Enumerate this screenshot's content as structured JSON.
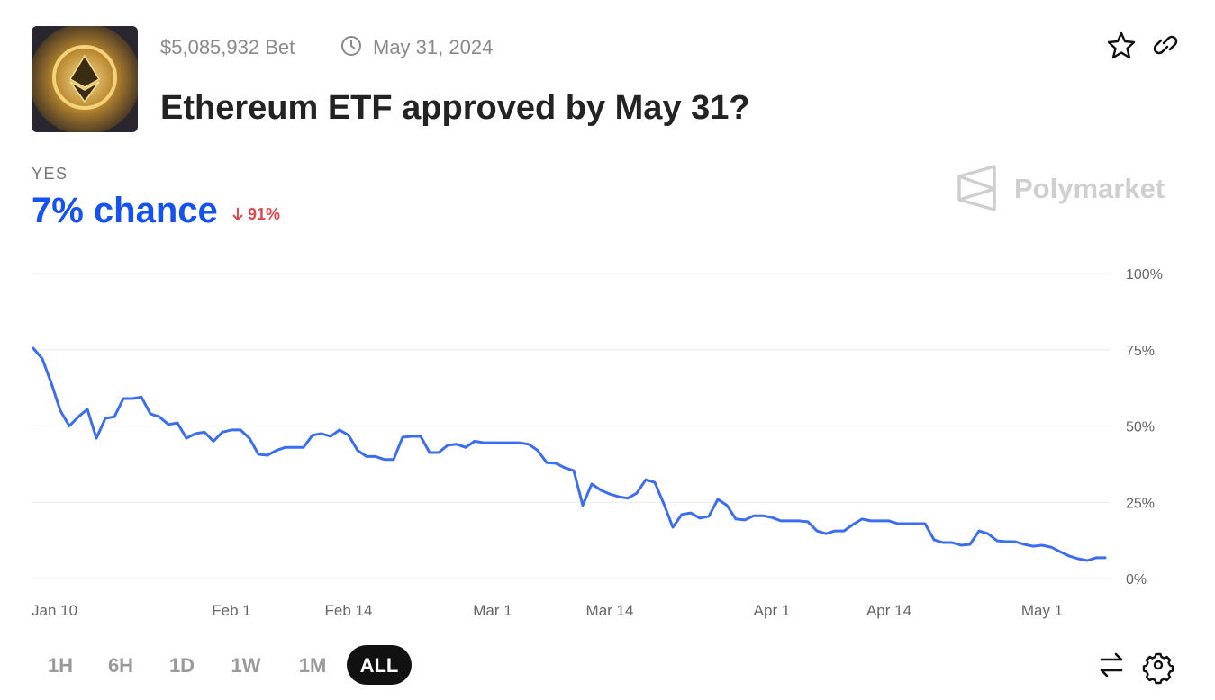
{
  "header": {
    "volume": "$5,085,932 Bet",
    "end_date": "May 31, 2024",
    "title": "Ethereum ETF approved by May 31?",
    "outcome": "YES",
    "chance": "7% chance",
    "change": "91%",
    "brand": "Polymarket"
  },
  "controls": {
    "ranges": [
      "1H",
      "6H",
      "1D",
      "1W",
      "1M",
      "ALL"
    ]
  },
  "chart_data": {
    "type": "line",
    "color": "#3a6df0",
    "grid": true,
    "x": [
      "Jan 10",
      "Jan 11",
      "Jan 12",
      "Jan 13",
      "Jan 14",
      "Jan 15",
      "Jan 16",
      "Jan 17",
      "Jan 18",
      "Jan 19",
      "Jan 20",
      "Jan 21",
      "Jan 22",
      "Jan 23",
      "Jan 24",
      "Jan 25",
      "Jan 26",
      "Jan 27",
      "Jan 28",
      "Jan 29",
      "Jan 30",
      "Jan 31",
      "Feb 1",
      "Feb 2",
      "Feb 3",
      "Feb 4",
      "Feb 5",
      "Feb 6",
      "Feb 7",
      "Feb 8",
      "Feb 9",
      "Feb 10",
      "Feb 11",
      "Feb 12",
      "Feb 13",
      "Feb 14",
      "Feb 15",
      "Feb 16",
      "Feb 17",
      "Feb 18",
      "Feb 19",
      "Feb 20",
      "Feb 21",
      "Feb 22",
      "Feb 23",
      "Feb 24",
      "Feb 25",
      "Feb 26",
      "Feb 27",
      "Feb 28",
      "Feb 29",
      "Mar 1",
      "Mar 2",
      "Mar 3",
      "Mar 4",
      "Mar 5",
      "Mar 6",
      "Mar 7",
      "Mar 8",
      "Mar 9",
      "Mar 10",
      "Mar 11",
      "Mar 12",
      "Mar 13",
      "Mar 14",
      "Mar 15",
      "Mar 16",
      "Mar 17",
      "Mar 18",
      "Mar 19",
      "Mar 20",
      "Mar 21",
      "Mar 22",
      "Mar 23",
      "Mar 24",
      "Mar 25",
      "Mar 26",
      "Mar 27",
      "Mar 28",
      "Mar 29",
      "Mar 30",
      "Mar 31",
      "Apr 1",
      "Apr 2",
      "Apr 3",
      "Apr 4",
      "Apr 5",
      "Apr 6",
      "Apr 7",
      "Apr 8",
      "Apr 9",
      "Apr 10",
      "Apr 11",
      "Apr 12",
      "Apr 13",
      "Apr 14",
      "Apr 15",
      "Apr 16",
      "Apr 17",
      "Apr 18",
      "Apr 19",
      "Apr 20",
      "Apr 21",
      "Apr 22",
      "Apr 23",
      "Apr 24",
      "Apr 25",
      "Apr 26",
      "Apr 27",
      "Apr 28",
      "Apr 29",
      "Apr 30",
      "May 1",
      "May 2",
      "May 3",
      "May 4",
      "May 5",
      "May 6",
      "May 7",
      "May 8"
    ],
    "values": [
      75.5,
      72,
      64,
      55,
      50,
      53,
      55.5,
      46,
      52.5,
      53,
      59,
      59,
      59.5,
      54,
      53,
      50.5,
      51,
      46,
      47.5,
      48,
      45,
      48,
      48.7,
      48.7,
      46,
      40.7,
      40.4,
      42,
      43,
      43,
      43,
      47,
      47.5,
      46.6,
      48.7,
      47,
      42,
      40,
      40,
      39,
      39,
      46.3,
      46.6,
      46.6,
      41.3,
      41.3,
      43.7,
      44,
      43,
      45,
      44.5,
      44.5,
      44.5,
      44.5,
      44.5,
      44,
      42,
      38,
      37.8,
      36.3,
      35.4,
      24,
      31,
      29,
      27.7,
      26.8,
      26.3,
      28,
      32.4,
      31.5,
      24.5,
      16.8,
      21,
      21.5,
      19.8,
      20.4,
      26,
      24,
      19.5,
      19.2,
      20.6,
      20.6,
      20,
      18.9,
      18.9,
      18.9,
      18.6,
      15.6,
      14.7,
      15.6,
      15.6,
      17.7,
      19.5,
      18.9,
      18.9,
      18.9,
      18,
      18,
      18,
      18,
      12.7,
      11.8,
      11.8,
      10.9,
      11.2,
      15.6,
      14.7,
      12.4,
      12.1,
      12.1,
      11.2,
      10.6,
      10.9,
      10.3,
      8.8,
      7.4,
      6.5,
      5.9,
      6.8,
      6.8
    ],
    "xlim": [
      "Jan 10",
      "May 9"
    ],
    "xticks": [
      "Jan 10",
      "Feb 1",
      "Feb 14",
      "Mar 1",
      "Mar 14",
      "Apr 1",
      "Apr 14",
      "May 1"
    ],
    "ylim": [
      0,
      100
    ],
    "yticks": [
      {
        "value": 0,
        "label": "0%"
      },
      {
        "value": 25,
        "label": "25%"
      },
      {
        "value": 50,
        "label": "50%"
      },
      {
        "value": 75,
        "label": "75%"
      },
      {
        "value": 100,
        "label": "100%"
      }
    ]
  }
}
